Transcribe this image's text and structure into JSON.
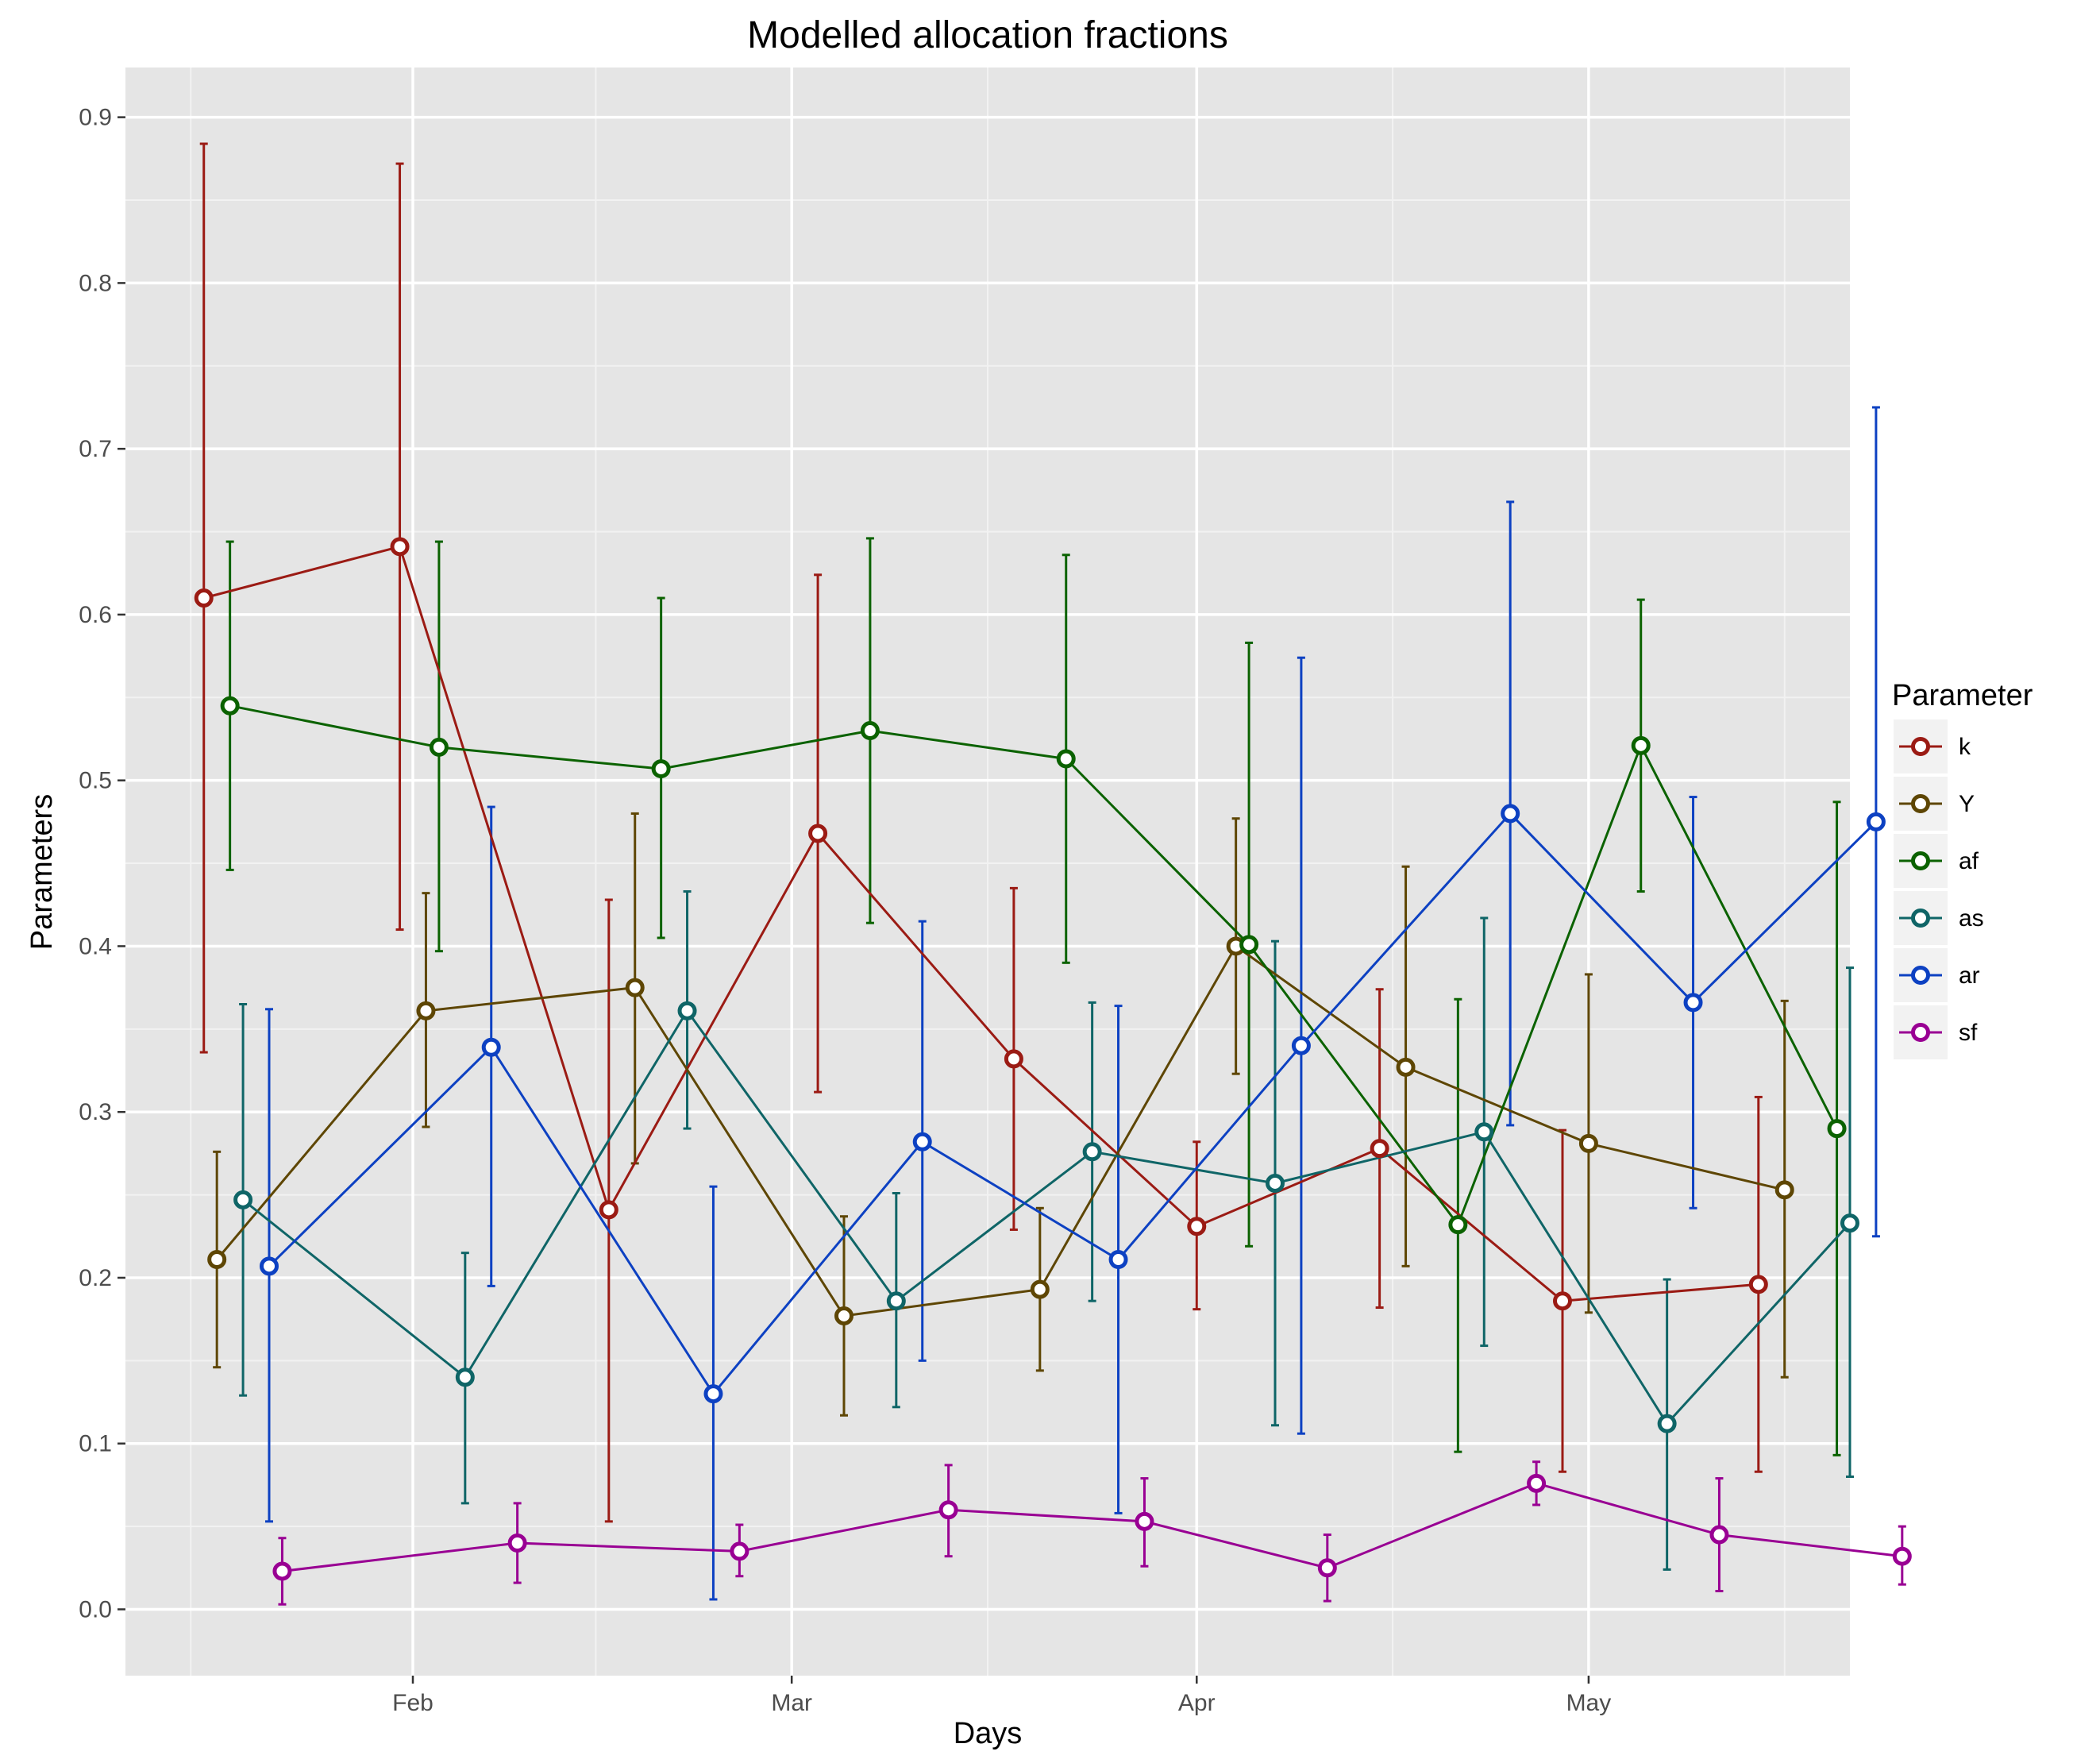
{
  "chart_data": {
    "type": "line",
    "title": "Modelled allocation fractions",
    "xlabel": "Days",
    "ylabel": "Parameters",
    "xlim": [
      "2016-01-10",
      "2016-05-21"
    ],
    "ylim": [
      -0.04,
      0.93
    ],
    "x_ticks": [
      {
        "date": "2016-02-01",
        "label": "Feb"
      },
      {
        "date": "2016-03-01",
        "label": "Mar"
      },
      {
        "date": "2016-04-01",
        "label": "Apr"
      },
      {
        "date": "2016-05-01",
        "label": "May"
      }
    ],
    "x_minor_ticks": [
      "2016-01-15",
      "2016-02-15",
      "2016-03-16",
      "2016-04-16",
      "2016-05-16"
    ],
    "y_ticks": [
      0.0,
      0.1,
      0.2,
      0.3,
      0.4,
      0.5,
      0.6,
      0.7,
      0.8,
      0.9
    ],
    "y_tick_labels": [
      "0.0",
      "0.1",
      "0.2",
      "0.3",
      "0.4",
      "0.5",
      "0.6",
      "0.7",
      "0.8",
      "0.9"
    ],
    "grid": true,
    "legend_title": "Parameter",
    "legend_position": "right",
    "series": [
      {
        "name": "k",
        "color": "#9b1b14",
        "x": [
          "2016-01-16",
          "2016-01-31",
          "2016-02-16",
          "2016-03-03",
          "2016-03-18",
          "2016-04-01",
          "2016-04-15",
          "2016-04-29",
          "2016-05-14"
        ],
        "y": [
          0.61,
          0.641,
          0.241,
          0.468,
          0.332,
          0.231,
          0.278,
          0.186,
          0.196
        ],
        "lower": [
          0.336,
          0.41,
          0.053,
          0.312,
          0.229,
          0.181,
          0.182,
          0.083,
          0.083
        ],
        "upper": [
          0.884,
          0.872,
          0.428,
          0.624,
          0.435,
          0.282,
          0.374,
          0.289,
          0.309
        ]
      },
      {
        "name": "Y",
        "color": "#5e4604",
        "x": [
          "2016-01-17",
          "2016-02-02",
          "2016-02-18",
          "2016-03-05",
          "2016-03-20",
          "2016-04-04",
          "2016-04-17",
          "2016-05-01",
          "2016-05-16"
        ],
        "y": [
          0.211,
          0.361,
          0.375,
          0.177,
          0.193,
          0.4,
          0.327,
          0.281,
          0.253
        ],
        "lower": [
          0.146,
          0.291,
          0.269,
          0.117,
          0.144,
          0.323,
          0.207,
          0.179,
          0.14
        ],
        "upper": [
          0.276,
          0.432,
          0.48,
          0.237,
          0.242,
          0.477,
          0.448,
          0.383,
          0.367
        ]
      },
      {
        "name": "af",
        "color": "#0b6200",
        "x": [
          "2016-01-18",
          "2016-02-03",
          "2016-02-20",
          "2016-03-07",
          "2016-03-22",
          "2016-04-05",
          "2016-04-21",
          "2016-05-05",
          "2016-05-20"
        ],
        "y": [
          0.545,
          0.52,
          0.507,
          0.53,
          0.513,
          0.401,
          0.232,
          0.521,
          0.29
        ],
        "lower": [
          0.446,
          0.397,
          0.405,
          0.414,
          0.39,
          0.219,
          0.095,
          0.433,
          0.093
        ],
        "upper": [
          0.644,
          0.644,
          0.61,
          0.646,
          0.636,
          0.583,
          0.368,
          0.609,
          0.487
        ]
      },
      {
        "name": "as",
        "color": "#0f6567",
        "x": [
          "2016-01-19",
          "2016-02-05",
          "2016-02-22",
          "2016-03-09",
          "2016-03-24",
          "2016-04-07",
          "2016-04-23",
          "2016-05-07",
          "2016-05-21"
        ],
        "y": [
          0.247,
          0.14,
          0.361,
          0.186,
          0.276,
          0.257,
          0.288,
          0.112,
          0.233
        ],
        "lower": [
          0.129,
          0.064,
          0.29,
          0.122,
          0.186,
          0.111,
          0.159,
          0.024,
          0.08
        ],
        "upper": [
          0.365,
          0.215,
          0.433,
          0.251,
          0.366,
          0.403,
          0.417,
          0.199,
          0.387
        ]
      },
      {
        "name": "ar",
        "color": "#0d41c2",
        "x": [
          "2016-01-21",
          "2016-02-07",
          "2016-02-24",
          "2016-03-11",
          "2016-03-26",
          "2016-04-09",
          "2016-04-25",
          "2016-05-09",
          "2016-05-23"
        ],
        "y": [
          0.207,
          0.339,
          0.13,
          0.282,
          0.211,
          0.34,
          0.48,
          0.366,
          0.475
        ],
        "lower": [
          0.053,
          0.195,
          0.006,
          0.15,
          0.058,
          0.106,
          0.292,
          0.242,
          0.225
        ],
        "upper": [
          0.362,
          0.484,
          0.255,
          0.415,
          0.364,
          0.574,
          0.668,
          0.49,
          0.725
        ]
      },
      {
        "name": "sf",
        "color": "#990093",
        "x": [
          "2016-01-22",
          "2016-02-09",
          "2016-02-26",
          "2016-03-13",
          "2016-03-28",
          "2016-04-11",
          "2016-04-27",
          "2016-05-11",
          "2016-05-25"
        ],
        "y": [
          0.023,
          0.04,
          0.035,
          0.06,
          0.053,
          0.025,
          0.076,
          0.045,
          0.032
        ],
        "lower": [
          0.003,
          0.016,
          0.02,
          0.032,
          0.026,
          0.005,
          0.063,
          0.011,
          0.015
        ],
        "upper": [
          0.043,
          0.064,
          0.051,
          0.087,
          0.079,
          0.045,
          0.089,
          0.079,
          0.05
        ]
      }
    ]
  }
}
